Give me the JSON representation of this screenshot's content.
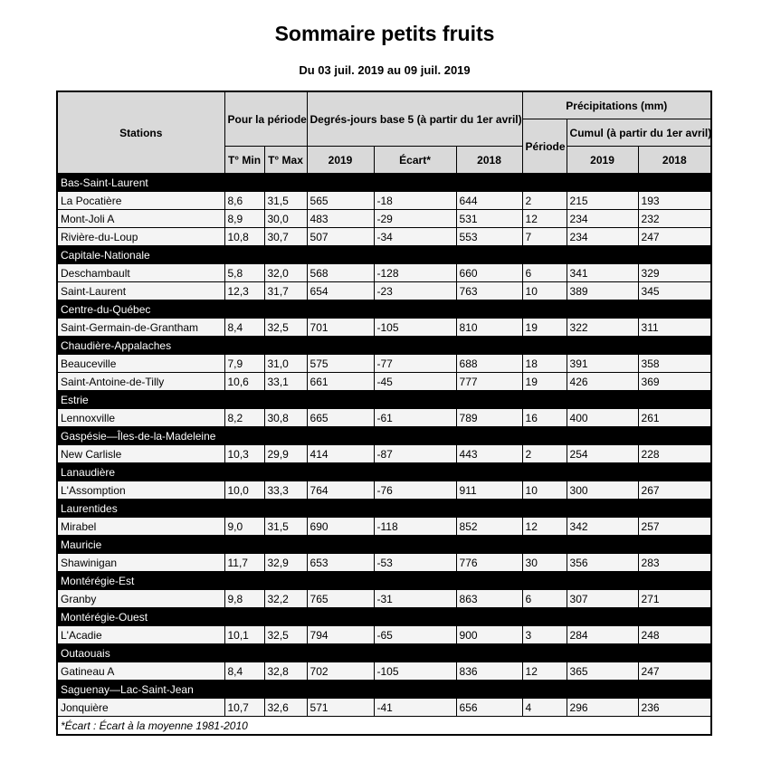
{
  "title": "Sommaire petits fruits",
  "subtitle": "Du 03 juil. 2019 au 09 juil. 2019",
  "headers": {
    "stations": "Stations",
    "pour_periode": "Pour la période",
    "degres_jours": "Degrés-jours base 5 (à partir du 1er avril)",
    "precipitations": "Précipitations (mm)",
    "periode": "Période",
    "cumul": "Cumul (à partir du 1er avril)",
    "tmin": "T° Min",
    "tmax": "T° Max",
    "dj_2019": "2019",
    "ecart": "Écart*",
    "dj_2018": "2018",
    "cumul_2019": "2019",
    "cumul_2018": "2018"
  },
  "groups": [
    {
      "region": "Bas-Saint-Laurent",
      "rows": [
        [
          "La Pocatière",
          "8,6",
          "31,5",
          "565",
          "-18",
          "644",
          "2",
          "215",
          "193"
        ],
        [
          "Mont-Joli A",
          "8,9",
          "30,0",
          "483",
          "-29",
          "531",
          "12",
          "234",
          "232"
        ],
        [
          "Rivière-du-Loup",
          "10,8",
          "30,7",
          "507",
          "-34",
          "553",
          "7",
          "234",
          "247"
        ]
      ]
    },
    {
      "region": "Capitale-Nationale",
      "rows": [
        [
          "Deschambault",
          "5,8",
          "32,0",
          "568",
          "-128",
          "660",
          "6",
          "341",
          "329"
        ],
        [
          "Saint-Laurent",
          "12,3",
          "31,7",
          "654",
          "-23",
          "763",
          "10",
          "389",
          "345"
        ]
      ]
    },
    {
      "region": "Centre-du-Québec",
      "rows": [
        [
          "Saint-Germain-de-Grantham",
          "8,4",
          "32,5",
          "701",
          "-105",
          "810",
          "19",
          "322",
          "311"
        ]
      ]
    },
    {
      "region": "Chaudière-Appalaches",
      "rows": [
        [
          "Beauceville",
          "7,9",
          "31,0",
          "575",
          "-77",
          "688",
          "18",
          "391",
          "358"
        ],
        [
          "Saint-Antoine-de-Tilly",
          "10,6",
          "33,1",
          "661",
          "-45",
          "777",
          "19",
          "426",
          "369"
        ]
      ]
    },
    {
      "region": "Estrie",
      "rows": [
        [
          "Lennoxville",
          "8,2",
          "30,8",
          "665",
          "-61",
          "789",
          "16",
          "400",
          "261"
        ]
      ]
    },
    {
      "region": "Gaspésie—Îles-de-la-Madeleine",
      "rows": [
        [
          "New Carlisle",
          "10,3",
          "29,9",
          "414",
          "-87",
          "443",
          "2",
          "254",
          "228"
        ]
      ]
    },
    {
      "region": "Lanaudière",
      "rows": [
        [
          "L'Assomption",
          "10,0",
          "33,3",
          "764",
          "-76",
          "911",
          "10",
          "300",
          "267"
        ]
      ]
    },
    {
      "region": "Laurentides",
      "rows": [
        [
          "Mirabel",
          "9,0",
          "31,5",
          "690",
          "-118",
          "852",
          "12",
          "342",
          "257"
        ]
      ]
    },
    {
      "region": "Mauricie",
      "rows": [
        [
          "Shawinigan",
          "11,7",
          "32,9",
          "653",
          "-53",
          "776",
          "30",
          "356",
          "283"
        ]
      ]
    },
    {
      "region": "Montérégie-Est",
      "rows": [
        [
          "Granby",
          "9,8",
          "32,2",
          "765",
          "-31",
          "863",
          "6",
          "307",
          "271"
        ]
      ]
    },
    {
      "region": "Montérégie-Ouest",
      "rows": [
        [
          "L'Acadie",
          "10,1",
          "32,5",
          "794",
          "-65",
          "900",
          "3",
          "284",
          "248"
        ]
      ]
    },
    {
      "region": "Outaouais",
      "rows": [
        [
          "Gatineau A",
          "8,4",
          "32,8",
          "702",
          "-105",
          "836",
          "12",
          "365",
          "247"
        ]
      ]
    },
    {
      "region": "Saguenay—Lac-Saint-Jean",
      "rows": [
        [
          "Jonquière",
          "10,7",
          "32,6",
          "571",
          "-41",
          "656",
          "4",
          "296",
          "236"
        ]
      ]
    }
  ],
  "footnote": "*Écart : Écart à la moyenne 1981-2010"
}
